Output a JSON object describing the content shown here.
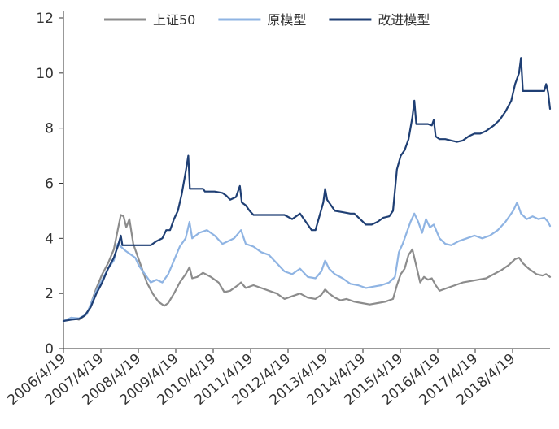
{
  "chart_data": {
    "type": "line",
    "title": "",
    "xlabel": "",
    "ylabel": "",
    "ylim": [
      0,
      12
    ],
    "yticks": [
      0,
      2,
      4,
      6,
      8,
      10,
      12
    ],
    "grid": false,
    "legend_position": "top",
    "x_tick_labels": [
      "2006/4/19",
      "2007/4/19",
      "2008/4/19",
      "2009/4/19",
      "2010/4/19",
      "2011/4/19",
      "2012/4/19",
      "2013/4/19",
      "2014/4/19",
      "2015/4/19",
      "2016/4/19",
      "2017/4/19",
      "2018/4/19"
    ],
    "x_range": [
      2006.3,
      2018.85
    ],
    "series": [
      {
        "name": "上证50",
        "color": "#8c8c8c",
        "points": [
          [
            2006.3,
            1.0
          ],
          [
            2006.5,
            1.12
          ],
          [
            2006.7,
            1.05
          ],
          [
            2006.9,
            1.25
          ],
          [
            2007.0,
            1.6
          ],
          [
            2007.15,
            2.2
          ],
          [
            2007.3,
            2.7
          ],
          [
            2007.45,
            3.1
          ],
          [
            2007.6,
            3.6
          ],
          [
            2007.7,
            4.3
          ],
          [
            2007.78,
            4.85
          ],
          [
            2007.85,
            4.8
          ],
          [
            2007.92,
            4.4
          ],
          [
            2008.0,
            4.7
          ],
          [
            2008.1,
            3.8
          ],
          [
            2008.2,
            3.4
          ],
          [
            2008.3,
            3.0
          ],
          [
            2008.45,
            2.4
          ],
          [
            2008.6,
            2.0
          ],
          [
            2008.75,
            1.7
          ],
          [
            2008.9,
            1.55
          ],
          [
            2009.0,
            1.65
          ],
          [
            2009.15,
            2.0
          ],
          [
            2009.3,
            2.4
          ],
          [
            2009.45,
            2.7
          ],
          [
            2009.55,
            2.95
          ],
          [
            2009.62,
            2.55
          ],
          [
            2009.75,
            2.6
          ],
          [
            2009.9,
            2.75
          ],
          [
            2010.1,
            2.6
          ],
          [
            2010.3,
            2.4
          ],
          [
            2010.45,
            2.05
          ],
          [
            2010.6,
            2.1
          ],
          [
            2010.8,
            2.3
          ],
          [
            2010.88,
            2.4
          ],
          [
            2011.0,
            2.2
          ],
          [
            2011.2,
            2.3
          ],
          [
            2011.4,
            2.2
          ],
          [
            2011.6,
            2.1
          ],
          [
            2011.8,
            2.0
          ],
          [
            2012.0,
            1.8
          ],
          [
            2012.2,
            1.9
          ],
          [
            2012.4,
            2.0
          ],
          [
            2012.6,
            1.85
          ],
          [
            2012.8,
            1.8
          ],
          [
            2012.95,
            1.95
          ],
          [
            2013.05,
            2.15
          ],
          [
            2013.15,
            2.0
          ],
          [
            2013.3,
            1.85
          ],
          [
            2013.45,
            1.75
          ],
          [
            2013.6,
            1.8
          ],
          [
            2013.8,
            1.7
          ],
          [
            2014.0,
            1.65
          ],
          [
            2014.2,
            1.6
          ],
          [
            2014.4,
            1.65
          ],
          [
            2014.6,
            1.7
          ],
          [
            2014.8,
            1.8
          ],
          [
            2014.9,
            2.3
          ],
          [
            2015.0,
            2.7
          ],
          [
            2015.1,
            2.9
          ],
          [
            2015.2,
            3.4
          ],
          [
            2015.3,
            3.6
          ],
          [
            2015.4,
            3.0
          ],
          [
            2015.5,
            2.4
          ],
          [
            2015.6,
            2.6
          ],
          [
            2015.7,
            2.5
          ],
          [
            2015.8,
            2.55
          ],
          [
            2015.9,
            2.3
          ],
          [
            2016.0,
            2.1
          ],
          [
            2016.2,
            2.2
          ],
          [
            2016.4,
            2.3
          ],
          [
            2016.6,
            2.4
          ],
          [
            2016.8,
            2.45
          ],
          [
            2017.0,
            2.5
          ],
          [
            2017.2,
            2.55
          ],
          [
            2017.4,
            2.7
          ],
          [
            2017.6,
            2.85
          ],
          [
            2017.8,
            3.05
          ],
          [
            2017.95,
            3.25
          ],
          [
            2018.05,
            3.3
          ],
          [
            2018.15,
            3.1
          ],
          [
            2018.3,
            2.9
          ],
          [
            2018.5,
            2.7
          ],
          [
            2018.65,
            2.65
          ],
          [
            2018.75,
            2.7
          ],
          [
            2018.85,
            2.6
          ]
        ]
      },
      {
        "name": "原模型",
        "color": "#8fb4e3",
        "points": [
          [
            2006.3,
            1.0
          ],
          [
            2006.5,
            1.12
          ],
          [
            2006.7,
            1.1
          ],
          [
            2006.9,
            1.25
          ],
          [
            2007.0,
            1.6
          ],
          [
            2007.15,
            2.1
          ],
          [
            2007.3,
            2.5
          ],
          [
            2007.45,
            2.9
          ],
          [
            2007.6,
            3.2
          ],
          [
            2007.7,
            3.8
          ],
          [
            2007.78,
            3.7
          ],
          [
            2007.9,
            3.55
          ],
          [
            2008.05,
            3.4
          ],
          [
            2008.15,
            3.3
          ],
          [
            2008.25,
            3.0
          ],
          [
            2008.4,
            2.7
          ],
          [
            2008.55,
            2.4
          ],
          [
            2008.7,
            2.5
          ],
          [
            2008.85,
            2.4
          ],
          [
            2009.0,
            2.7
          ],
          [
            2009.15,
            3.2
          ],
          [
            2009.3,
            3.7
          ],
          [
            2009.45,
            4.0
          ],
          [
            2009.55,
            4.6
          ],
          [
            2009.62,
            4.0
          ],
          [
            2009.8,
            4.2
          ],
          [
            2010.0,
            4.3
          ],
          [
            2010.2,
            4.1
          ],
          [
            2010.4,
            3.8
          ],
          [
            2010.55,
            3.9
          ],
          [
            2010.7,
            4.0
          ],
          [
            2010.88,
            4.3
          ],
          [
            2011.0,
            3.8
          ],
          [
            2011.2,
            3.7
          ],
          [
            2011.4,
            3.5
          ],
          [
            2011.6,
            3.4
          ],
          [
            2011.8,
            3.1
          ],
          [
            2012.0,
            2.8
          ],
          [
            2012.2,
            2.7
          ],
          [
            2012.4,
            2.9
          ],
          [
            2012.6,
            2.6
          ],
          [
            2012.8,
            2.55
          ],
          [
            2012.95,
            2.8
          ],
          [
            2013.05,
            3.2
          ],
          [
            2013.15,
            2.9
          ],
          [
            2013.3,
            2.7
          ],
          [
            2013.5,
            2.55
          ],
          [
            2013.7,
            2.35
          ],
          [
            2013.9,
            2.3
          ],
          [
            2014.1,
            2.2
          ],
          [
            2014.3,
            2.25
          ],
          [
            2014.5,
            2.3
          ],
          [
            2014.7,
            2.4
          ],
          [
            2014.85,
            2.6
          ],
          [
            2014.95,
            3.5
          ],
          [
            2015.05,
            3.8
          ],
          [
            2015.15,
            4.2
          ],
          [
            2015.25,
            4.6
          ],
          [
            2015.35,
            4.9
          ],
          [
            2015.45,
            4.6
          ],
          [
            2015.55,
            4.2
          ],
          [
            2015.65,
            4.7
          ],
          [
            2015.75,
            4.4
          ],
          [
            2015.85,
            4.5
          ],
          [
            2016.0,
            4.0
          ],
          [
            2016.15,
            3.8
          ],
          [
            2016.3,
            3.75
          ],
          [
            2016.5,
            3.9
          ],
          [
            2016.7,
            4.0
          ],
          [
            2016.9,
            4.1
          ],
          [
            2017.1,
            4.0
          ],
          [
            2017.3,
            4.1
          ],
          [
            2017.5,
            4.3
          ],
          [
            2017.7,
            4.6
          ],
          [
            2017.9,
            5.0
          ],
          [
            2018.0,
            5.3
          ],
          [
            2018.1,
            4.9
          ],
          [
            2018.25,
            4.7
          ],
          [
            2018.4,
            4.8
          ],
          [
            2018.55,
            4.7
          ],
          [
            2018.7,
            4.75
          ],
          [
            2018.8,
            4.6
          ],
          [
            2018.85,
            4.45
          ]
        ]
      },
      {
        "name": "改进模型",
        "color": "#1f3f74",
        "points": [
          [
            2006.3,
            1.0
          ],
          [
            2006.5,
            1.05
          ],
          [
            2006.7,
            1.08
          ],
          [
            2006.85,
            1.2
          ],
          [
            2007.0,
            1.5
          ],
          [
            2007.15,
            2.0
          ],
          [
            2007.3,
            2.4
          ],
          [
            2007.45,
            2.9
          ],
          [
            2007.6,
            3.3
          ],
          [
            2007.7,
            3.7
          ],
          [
            2007.78,
            4.1
          ],
          [
            2007.82,
            3.75
          ],
          [
            2007.9,
            3.75
          ],
          [
            2008.1,
            3.75
          ],
          [
            2008.3,
            3.75
          ],
          [
            2008.45,
            3.75
          ],
          [
            2008.55,
            3.75
          ],
          [
            2008.6,
            3.8
          ],
          [
            2008.7,
            3.9
          ],
          [
            2008.85,
            4.0
          ],
          [
            2008.95,
            4.3
          ],
          [
            2009.05,
            4.3
          ],
          [
            2009.15,
            4.7
          ],
          [
            2009.25,
            5.0
          ],
          [
            2009.35,
            5.6
          ],
          [
            2009.45,
            6.4
          ],
          [
            2009.52,
            7.0
          ],
          [
            2009.56,
            5.8
          ],
          [
            2009.7,
            5.8
          ],
          [
            2009.9,
            5.8
          ],
          [
            2009.95,
            5.7
          ],
          [
            2010.2,
            5.7
          ],
          [
            2010.4,
            5.65
          ],
          [
            2010.5,
            5.55
          ],
          [
            2010.6,
            5.4
          ],
          [
            2010.75,
            5.5
          ],
          [
            2010.85,
            5.9
          ],
          [
            2010.9,
            5.3
          ],
          [
            2011.0,
            5.2
          ],
          [
            2011.1,
            5.0
          ],
          [
            2011.2,
            4.85
          ],
          [
            2011.4,
            4.85
          ],
          [
            2011.6,
            4.85
          ],
          [
            2011.8,
            4.85
          ],
          [
            2012.0,
            4.85
          ],
          [
            2012.2,
            4.7
          ],
          [
            2012.4,
            4.9
          ],
          [
            2012.6,
            4.5
          ],
          [
            2012.7,
            4.3
          ],
          [
            2012.8,
            4.3
          ],
          [
            2012.9,
            4.8
          ],
          [
            2013.0,
            5.3
          ],
          [
            2013.05,
            5.8
          ],
          [
            2013.1,
            5.4
          ],
          [
            2013.2,
            5.2
          ],
          [
            2013.3,
            5.0
          ],
          [
            2013.5,
            4.95
          ],
          [
            2013.7,
            4.9
          ],
          [
            2013.8,
            4.9
          ],
          [
            2013.95,
            4.7
          ],
          [
            2014.1,
            4.5
          ],
          [
            2014.25,
            4.5
          ],
          [
            2014.4,
            4.6
          ],
          [
            2014.55,
            4.75
          ],
          [
            2014.7,
            4.8
          ],
          [
            2014.8,
            5.0
          ],
          [
            2014.9,
            6.5
          ],
          [
            2015.0,
            7.0
          ],
          [
            2015.1,
            7.2
          ],
          [
            2015.2,
            7.6
          ],
          [
            2015.3,
            8.4
          ],
          [
            2015.35,
            9.0
          ],
          [
            2015.4,
            8.15
          ],
          [
            2015.55,
            8.15
          ],
          [
            2015.7,
            8.15
          ],
          [
            2015.8,
            8.1
          ],
          [
            2015.85,
            8.3
          ],
          [
            2015.9,
            7.7
          ],
          [
            2016.0,
            7.6
          ],
          [
            2016.15,
            7.6
          ],
          [
            2016.3,
            7.55
          ],
          [
            2016.45,
            7.5
          ],
          [
            2016.6,
            7.55
          ],
          [
            2016.75,
            7.7
          ],
          [
            2016.9,
            7.8
          ],
          [
            2017.05,
            7.8
          ],
          [
            2017.2,
            7.9
          ],
          [
            2017.4,
            8.1
          ],
          [
            2017.55,
            8.3
          ],
          [
            2017.7,
            8.6
          ],
          [
            2017.85,
            9.0
          ],
          [
            2017.95,
            9.6
          ],
          [
            2018.05,
            10.0
          ],
          [
            2018.1,
            10.55
          ],
          [
            2018.15,
            9.35
          ],
          [
            2018.3,
            9.35
          ],
          [
            2018.45,
            9.35
          ],
          [
            2018.6,
            9.35
          ],
          [
            2018.7,
            9.35
          ],
          [
            2018.75,
            9.6
          ],
          [
            2018.8,
            9.3
          ],
          [
            2018.85,
            8.7
          ]
        ]
      }
    ]
  }
}
